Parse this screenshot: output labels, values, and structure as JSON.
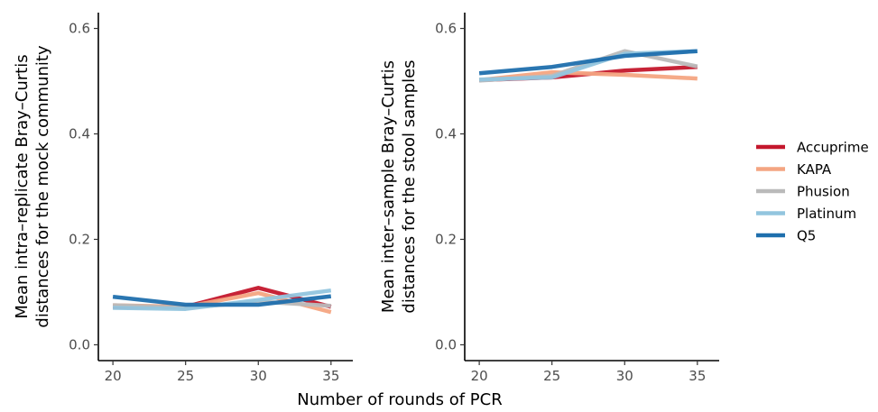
{
  "chart_data": [
    {
      "type": "line",
      "ylabel_line1": "Mean intra–replicate Bray–Curtis",
      "ylabel_line2": "distances for the mock community",
      "x": [
        20,
        25,
        30,
        35
      ],
      "xlim": [
        19,
        36.5
      ],
      "ylim": [
        -0.03,
        0.63
      ],
      "xticks": [
        20,
        25,
        30,
        35
      ],
      "yticks": [
        0.0,
        0.2,
        0.4,
        0.6
      ],
      "ytick_labels": [
        "0.0",
        "0.2",
        "0.4",
        "0.6"
      ],
      "grid": false,
      "series": [
        {
          "name": "Accuprime",
          "values": [
            0.072,
            0.072,
            0.108,
            0.072
          ]
        },
        {
          "name": "KAPA",
          "values": [
            0.075,
            0.072,
            0.098,
            0.062
          ]
        },
        {
          "name": "Phusion",
          "values": [
            0.075,
            0.07,
            0.082,
            0.074
          ]
        },
        {
          "name": "Platinum",
          "values": [
            0.07,
            0.068,
            0.085,
            0.103
          ]
        },
        {
          "name": "Q5",
          "values": [
            0.091,
            0.076,
            0.076,
            0.092
          ]
        }
      ]
    },
    {
      "type": "line",
      "ylabel_line1": "Mean inter–sample Bray–Curtis",
      "ylabel_line2": "distances for the stool samples",
      "x": [
        20,
        25,
        30,
        35
      ],
      "xlim": [
        19,
        36.5
      ],
      "ylim": [
        -0.03,
        0.63
      ],
      "xticks": [
        20,
        25,
        30,
        35
      ],
      "yticks": [
        0.0,
        0.2,
        0.4,
        0.6
      ],
      "ytick_labels": [
        "0.0",
        "0.2",
        "0.4",
        "0.6"
      ],
      "grid": false,
      "series": [
        {
          "name": "Accuprime",
          "values": [
            0.502,
            0.507,
            0.52,
            0.527
          ]
        },
        {
          "name": "KAPA",
          "values": [
            0.502,
            0.517,
            0.512,
            0.505
          ]
        },
        {
          "name": "Phusion",
          "values": [
            0.501,
            0.51,
            0.557,
            0.528
          ]
        },
        {
          "name": "Platinum",
          "values": [
            0.503,
            0.507,
            0.552,
            0.557
          ]
        },
        {
          "name": "Q5",
          "values": [
            0.515,
            0.527,
            0.548,
            0.557
          ]
        }
      ]
    }
  ],
  "shared_xlabel": "Number of rounds of PCR",
  "legend": {
    "placement": "right",
    "items": [
      {
        "name": "Accuprime",
        "color": "#c4172c"
      },
      {
        "name": "KAPA",
        "color": "#f4a582"
      },
      {
        "name": "Phusion",
        "color": "#bababa"
      },
      {
        "name": "Platinum",
        "color": "#92c5de"
      },
      {
        "name": "Q5",
        "color": "#1f6fad"
      }
    ]
  }
}
